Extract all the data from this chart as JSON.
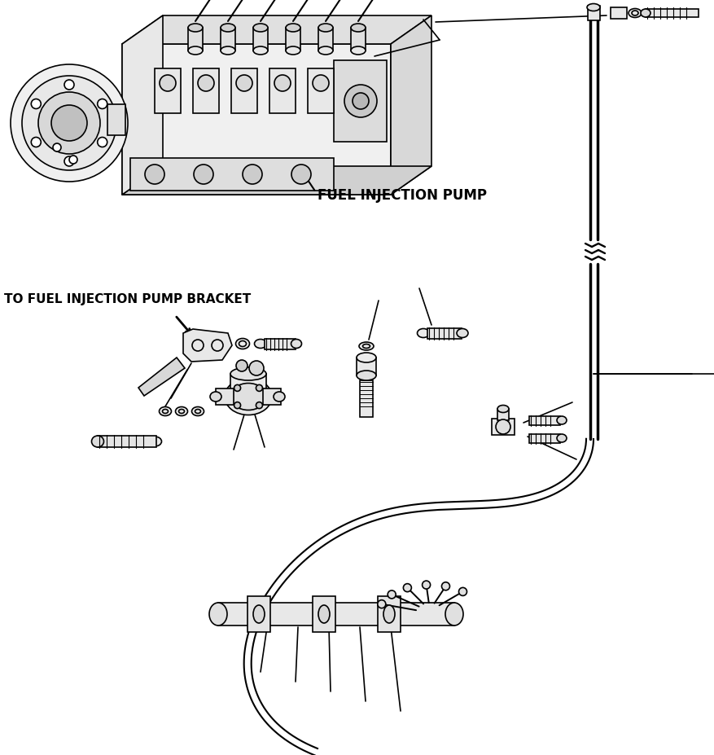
{
  "background_color": "#ffffff",
  "line_color": "#000000",
  "text_color": "#000000",
  "label_fuel_injection_pump": "FUEL INJECTION PUMP",
  "label_bracket": "TO FUEL INJECTION PUMP BRACKET",
  "label_fontsize": 11,
  "fig_width": 8.78,
  "fig_height": 9.28,
  "dpi": 100
}
